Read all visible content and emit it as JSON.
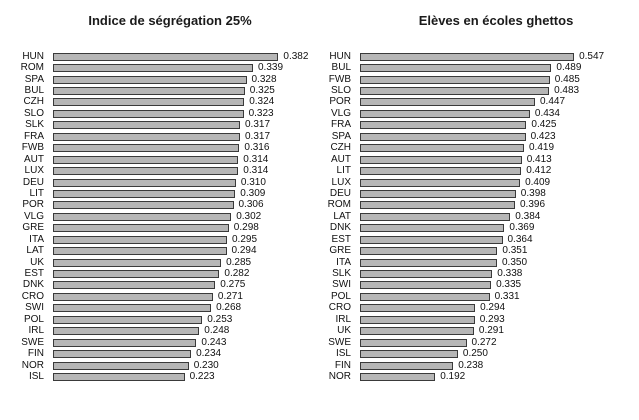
{
  "page": {
    "background_color": "#ffffff",
    "text_color": "#111111",
    "bar_fill_color": "#b6b6b6",
    "bar_border_color": "#3a3a3a"
  },
  "chart_data": [
    {
      "type": "bar",
      "orientation": "horizontal",
      "title": "Indice de ségrégation 25%",
      "xlabel": "",
      "ylabel": "",
      "grid": false,
      "legend": "none",
      "xlim": [
        0,
        0.4
      ],
      "categories": [
        "HUN",
        "ROM",
        "SPA",
        "BUL",
        "CZH",
        "SLO",
        "SLK",
        "FRA",
        "FWB",
        "AUT",
        "LUX",
        "DEU",
        "LIT",
        "POR",
        "VLG",
        "GRE",
        "ITA",
        "LAT",
        "UK",
        "EST",
        "DNK",
        "CRO",
        "SWI",
        "POL",
        "IRL",
        "SWE",
        "FIN",
        "NOR",
        "ISL"
      ],
      "values": [
        0.382,
        0.339,
        0.328,
        0.325,
        0.324,
        0.323,
        0.317,
        0.317,
        0.316,
        0.314,
        0.314,
        0.31,
        0.309,
        0.306,
        0.302,
        0.298,
        0.295,
        0.294,
        0.285,
        0.282,
        0.275,
        0.271,
        0.268,
        0.253,
        0.248,
        0.243,
        0.234,
        0.23,
        0.223
      ],
      "value_labels": [
        "0.382",
        "0.339",
        "0.328",
        "0.325",
        "0.324",
        "0.323",
        "0.317",
        "0.317",
        "0.316",
        "0.314",
        "0.314",
        "0.310",
        "0.309",
        "0.306",
        "0.302",
        "0.298",
        "0.295",
        "0.294",
        "0.285",
        "0.282",
        "0.275",
        "0.271",
        "0.268",
        "0.253",
        "0.248",
        "0.243",
        "0.234",
        "0.230",
        "0.223"
      ]
    },
    {
      "type": "bar",
      "orientation": "horizontal",
      "title": "Elèves en écoles ghettos",
      "xlabel": "",
      "ylabel": "",
      "grid": false,
      "legend": "none",
      "xlim": [
        0,
        0.7
      ],
      "categories": [
        "HUN",
        "BUL",
        "FWB",
        "SLO",
        "POR",
        "VLG",
        "FRA",
        "SPA",
        "CZH",
        "AUT",
        "LIT",
        "LUX",
        "DEU",
        "ROM",
        "LAT",
        "DNK",
        "EST",
        "GRE",
        "ITA",
        "SLK",
        "SWI",
        "POL",
        "CRO",
        "IRL",
        "UK",
        "SWE",
        "ISL",
        "FIN",
        "NOR"
      ],
      "values": [
        0.547,
        0.489,
        0.485,
        0.483,
        0.447,
        0.434,
        0.425,
        0.423,
        0.419,
        0.413,
        0.412,
        0.409,
        0.398,
        0.396,
        0.384,
        0.369,
        0.364,
        0.351,
        0.35,
        0.338,
        0.335,
        0.331,
        0.294,
        0.293,
        0.291,
        0.272,
        0.25,
        0.238,
        0.192
      ],
      "value_labels": [
        "0.547",
        "0.489",
        "0.485",
        "0.483",
        "0.447",
        "0.434",
        "0.425",
        "0.423",
        "0.419",
        "0.413",
        "0.412",
        "0.409",
        "0.398",
        "0.396",
        "0.384",
        "0.369",
        "0.364",
        "0.351",
        "0.350",
        "0.338",
        "0.335",
        "0.331",
        "0.294",
        "0.293",
        "0.291",
        "0.272",
        "0.250",
        "0.238",
        "0.192"
      ]
    }
  ]
}
